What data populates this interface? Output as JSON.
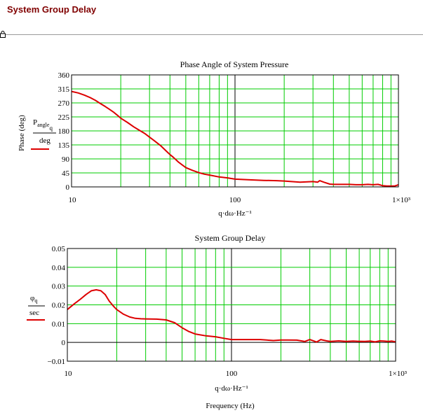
{
  "page": {
    "heading": "System Group Delay"
  },
  "icons": {
    "region_marker": "lock-icon"
  },
  "chart_data": [
    {
      "type": "line",
      "title": "Phase Angle of System Pressure",
      "xlabel": "q·dω·Hz⁻¹",
      "ylabel": "Phase (deg)",
      "legend": {
        "numerator": "P",
        "numerator_sub": "angle",
        "numerator_sub2": "q",
        "denominator": "deg"
      },
      "xscale": "log",
      "xlim": [
        10,
        1000
      ],
      "ylim": [
        0,
        360
      ],
      "xtick_labels": [
        "10",
        "100",
        "1×10³"
      ],
      "yticks": [
        0,
        45,
        90,
        135,
        180,
        225,
        270,
        315,
        360
      ],
      "ytick_labels": [
        "0",
        "45",
        "90",
        "135",
        "180",
        "225",
        "270",
        "315",
        "360"
      ],
      "grid": true,
      "series": [
        {
          "color": "#dd0000",
          "x": [
            10,
            11,
            12,
            13,
            14,
            15,
            16,
            17,
            18,
            19,
            20,
            22,
            24,
            26,
            28,
            30,
            32,
            35,
            38,
            40,
            42,
            45,
            50,
            55,
            60,
            65,
            70,
            80,
            90,
            100,
            120,
            150,
            180,
            200,
            250,
            300,
            320,
            330,
            350,
            380,
            400,
            450,
            500,
            550,
            600,
            650,
            700,
            750,
            800,
            850,
            900,
            950,
            1000
          ],
          "y": [
            307,
            302,
            295,
            287,
            278,
            268,
            259,
            250,
            241,
            231,
            221,
            207,
            193,
            182,
            172,
            160,
            149,
            133,
            115,
            104,
            95,
            80,
            62,
            53,
            46,
            41,
            38,
            32,
            29,
            25,
            23,
            21,
            20,
            19,
            15,
            17,
            15,
            20,
            15,
            9,
            8,
            8,
            8,
            7,
            7,
            8,
            7,
            8,
            4,
            3,
            3,
            3,
            7
          ]
        }
      ]
    },
    {
      "type": "line",
      "title": "System Group Delay",
      "xlabel": "q·dω·Hz⁻¹",
      "xlabel2": "Frequency (Hz)",
      "legend": {
        "numerator": "φ",
        "numerator_sub": "q",
        "denominator": "sec"
      },
      "xscale": "log",
      "xlim": [
        10,
        1000
      ],
      "ylim": [
        -0.01,
        0.05
      ],
      "xtick_labels": [
        "10",
        "100",
        "1×10³"
      ],
      "yticks": [
        -0.01,
        0,
        0.01,
        0.02,
        0.03,
        0.04,
        0.05
      ],
      "ytick_labels": [
        "−0.01",
        "0",
        "0.01",
        "0.02",
        "0.03",
        "0.04",
        "0.05"
      ],
      "grid": true,
      "series": [
        {
          "color": "#dd0000",
          "x": [
            10,
            11,
            12,
            13,
            14,
            15,
            16,
            17,
            18,
            19,
            20,
            22,
            24,
            26,
            28,
            30,
            35,
            40,
            45,
            50,
            55,
            60,
            70,
            80,
            90,
            100,
            120,
            150,
            180,
            200,
            220,
            250,
            280,
            300,
            330,
            350,
            380,
            400,
            450,
            500,
            550,
            600,
            650,
            700,
            750,
            800,
            850,
            900,
            950,
            1000
          ],
          "y": [
            0.0175,
            0.0205,
            0.023,
            0.0255,
            0.0275,
            0.028,
            0.0275,
            0.0255,
            0.022,
            0.0195,
            0.0175,
            0.015,
            0.0135,
            0.0128,
            0.0126,
            0.0125,
            0.0124,
            0.012,
            0.0105,
            0.0078,
            0.0058,
            0.0045,
            0.0035,
            0.003,
            0.0022,
            0.0015,
            0.0015,
            0.0015,
            0.001,
            0.0013,
            0.0013,
            0.0012,
            0.0005,
            0.0015,
            0.0002,
            0.0015,
            0.0008,
            0.0005,
            0.0008,
            0.0005,
            0.0007,
            0.0006,
            0.0005,
            0.0007,
            0.0003,
            0.0008,
            0.0007,
            0.0005,
            0.0007,
            0.0003
          ]
        }
      ]
    }
  ]
}
